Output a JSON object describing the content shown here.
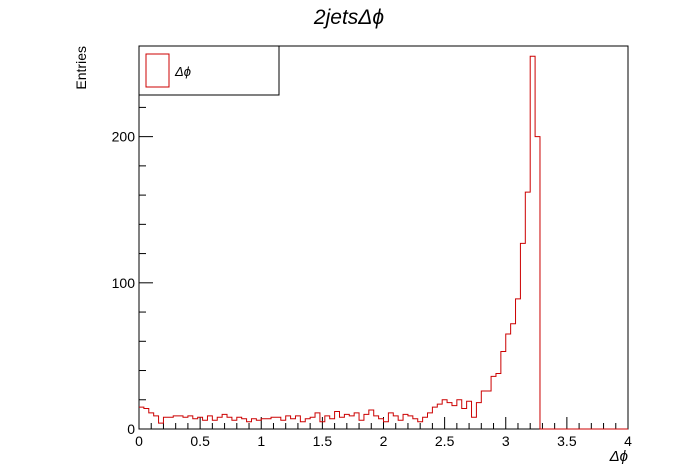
{
  "chart_data": {
    "type": "histogram",
    "title": "2jetsΔϕ",
    "xlabel": "Δϕ",
    "ylabel": "Entries",
    "xlim": [
      0,
      4
    ],
    "ylim": [
      0,
      262
    ],
    "x_ticks": [
      "0",
      "0.5",
      "1",
      "1.5",
      "2",
      "2.5",
      "3",
      "3.5",
      "4"
    ],
    "y_ticks": [
      "0",
      "100",
      "200"
    ],
    "grid": false,
    "legend": {
      "placement": "top-left",
      "entries": [
        "Δϕ"
      ]
    },
    "series": [
      {
        "name": "Δϕ",
        "color": "#cc0000",
        "bin_width": 0.04,
        "bin_start": 0,
        "values": [
          15,
          14,
          11,
          9,
          4,
          8,
          8,
          9,
          9,
          8,
          9,
          7,
          8,
          6,
          9,
          6,
          8,
          10,
          8,
          6,
          8,
          7,
          5,
          7,
          6,
          7,
          7,
          8,
          8,
          6,
          9,
          7,
          9,
          5,
          7,
          8,
          11,
          5,
          9,
          7,
          12,
          8,
          10,
          9,
          11,
          6,
          10,
          13,
          9,
          7,
          5,
          11,
          9,
          6,
          10,
          9,
          7,
          5,
          8,
          11,
          15,
          17,
          20,
          18,
          16,
          20,
          14,
          19,
          8,
          18,
          26,
          26,
          36,
          38,
          53,
          65,
          72,
          89,
          127,
          162,
          255,
          200,
          0,
          0,
          0,
          0,
          0,
          0,
          0,
          0,
          0,
          0,
          0,
          0,
          0,
          0,
          0,
          0,
          0,
          0
        ]
      }
    ]
  }
}
